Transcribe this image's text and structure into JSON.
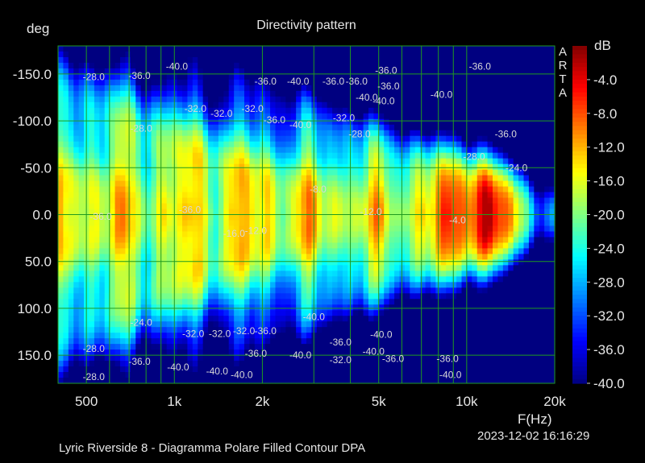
{
  "chart_data": {
    "type": "heatmap",
    "title": "Directivity pattern",
    "ylabel": "deg",
    "xlabel": "F(Hz)",
    "colorbar_label": "dB",
    "x_scale": "log",
    "xlim": [
      400,
      20000
    ],
    "ylim": [
      -180,
      180
    ],
    "x_ticks": [
      500,
      1000,
      2000,
      5000,
      10000,
      20000
    ],
    "x_tick_labels": [
      "500",
      "1k",
      "2k",
      "5k",
      "10k",
      "20k"
    ],
    "y_ticks": [
      -150,
      -100,
      -50,
      0,
      50,
      100,
      150
    ],
    "y_tick_labels": [
      "-150.0",
      "-100.0",
      "-50.0",
      "0.0",
      "50.0",
      "100.0",
      "150.0"
    ],
    "colorbar_range": [
      -40,
      0
    ],
    "colorbar_ticks": [
      "-4.0",
      "-8.0",
      "-12.0",
      "-16.0",
      "-20.0",
      "-24.0",
      "-28.0",
      "-32.0",
      "-36.0",
      "-40.0"
    ],
    "grid": true,
    "grid_color": "#1f9a1f",
    "colormap": [
      "#000080",
      "#0000ff",
      "#0080ff",
      "#00ffff",
      "#80ff80",
      "#ffff00",
      "#ff8000",
      "#ff0000",
      "#800000"
    ],
    "contour_labels": [
      {
        "text": "-28.0",
        "f": 530,
        "deg": -147
      },
      {
        "text": "-36.0",
        "f": 760,
        "deg": -148
      },
      {
        "text": "-40.0",
        "f": 1020,
        "deg": -158
      },
      {
        "text": "-36.0",
        "f": 2050,
        "deg": -142
      },
      {
        "text": "-40.0",
        "f": 2650,
        "deg": -142
      },
      {
        "text": "-36.0",
        "f": 3500,
        "deg": -142
      },
      {
        "text": "-36.0",
        "f": 4200,
        "deg": -142
      },
      {
        "text": "-36.0",
        "f": 5300,
        "deg": -154
      },
      {
        "text": "-36.0",
        "f": 5400,
        "deg": -137
      },
      {
        "text": "-40.0",
        "f": 8200,
        "deg": -128
      },
      {
        "text": "-36.0",
        "f": 11100,
        "deg": -158
      },
      {
        "text": "-40.0",
        "f": 4550,
        "deg": -125
      },
      {
        "text": "-40.0",
        "f": 5200,
        "deg": -121
      },
      {
        "text": "-32.0",
        "f": 1180,
        "deg": -113
      },
      {
        "text": "-32.0",
        "f": 1450,
        "deg": -108
      },
      {
        "text": "-32.0",
        "f": 1850,
        "deg": -113
      },
      {
        "text": "-36.0",
        "f": 2200,
        "deg": -101
      },
      {
        "text": "-40.0",
        "f": 2700,
        "deg": -96
      },
      {
        "text": "-32.0",
        "f": 3800,
        "deg": -103
      },
      {
        "text": "-28.0",
        "f": 4300,
        "deg": -86
      },
      {
        "text": "-28.0",
        "f": 770,
        "deg": -92
      },
      {
        "text": "-36.0",
        "f": 13600,
        "deg": -86
      },
      {
        "text": "-36.0",
        "f": 560,
        "deg": 2
      },
      {
        "text": "-36.0",
        "f": 1130,
        "deg": -5
      },
      {
        "text": "-16.0",
        "f": 1600,
        "deg": 20
      },
      {
        "text": "-12.0",
        "f": 1900,
        "deg": 17
      },
      {
        "text": "-8.0",
        "f": 3100,
        "deg": -27
      },
      {
        "text": "-12.0",
        "f": 4700,
        "deg": -3
      },
      {
        "text": "-4.0",
        "f": 9300,
        "deg": 6
      },
      {
        "text": "-24.0",
        "f": 14800,
        "deg": -50
      },
      {
        "text": "-28.0",
        "f": 10600,
        "deg": -62
      },
      {
        "text": "-24.0",
        "f": 770,
        "deg": 115
      },
      {
        "text": "-32.0",
        "f": 1160,
        "deg": 127
      },
      {
        "text": "-32.0",
        "f": 1430,
        "deg": 127
      },
      {
        "text": "-32.0",
        "f": 1730,
        "deg": 124
      },
      {
        "text": "-36.0",
        "f": 2050,
        "deg": 124
      },
      {
        "text": "-40.0",
        "f": 3000,
        "deg": 109
      },
      {
        "text": "-36.0",
        "f": 3700,
        "deg": 136
      },
      {
        "text": "-40.0",
        "f": 5100,
        "deg": 128
      },
      {
        "text": "-40.0",
        "f": 4800,
        "deg": 146
      },
      {
        "text": "-28.0",
        "f": 530,
        "deg": 143
      },
      {
        "text": "-36.0",
        "f": 760,
        "deg": 157
      },
      {
        "text": "-40.0",
        "f": 1030,
        "deg": 163
      },
      {
        "text": "-40.0",
        "f": 1400,
        "deg": 167
      },
      {
        "text": "-40.0",
        "f": 1700,
        "deg": 171
      },
      {
        "text": "-36.0",
        "f": 1900,
        "deg": 148
      },
      {
        "text": "-40.0",
        "f": 2700,
        "deg": 150
      },
      {
        "text": "-32.0",
        "f": 3700,
        "deg": 155
      },
      {
        "text": "-36.0",
        "f": 5600,
        "deg": 154
      },
      {
        "text": "-36.0",
        "f": 8600,
        "deg": 154
      },
      {
        "text": "-40.0",
        "f": 8800,
        "deg": 171
      },
      {
        "text": "-28.0",
        "f": 530,
        "deg": 173
      }
    ]
  },
  "header": {
    "ylabel": "deg",
    "title": "Directivity pattern",
    "cb_unit": "dB",
    "brand": "ARTA"
  },
  "footer": {
    "caption": "Lyric Riverside 8 - Diagramma Polare Filled Contour      DPA",
    "timestamp": "2023-12-02  16:16:29"
  },
  "x_axis_unit": "F(Hz)"
}
